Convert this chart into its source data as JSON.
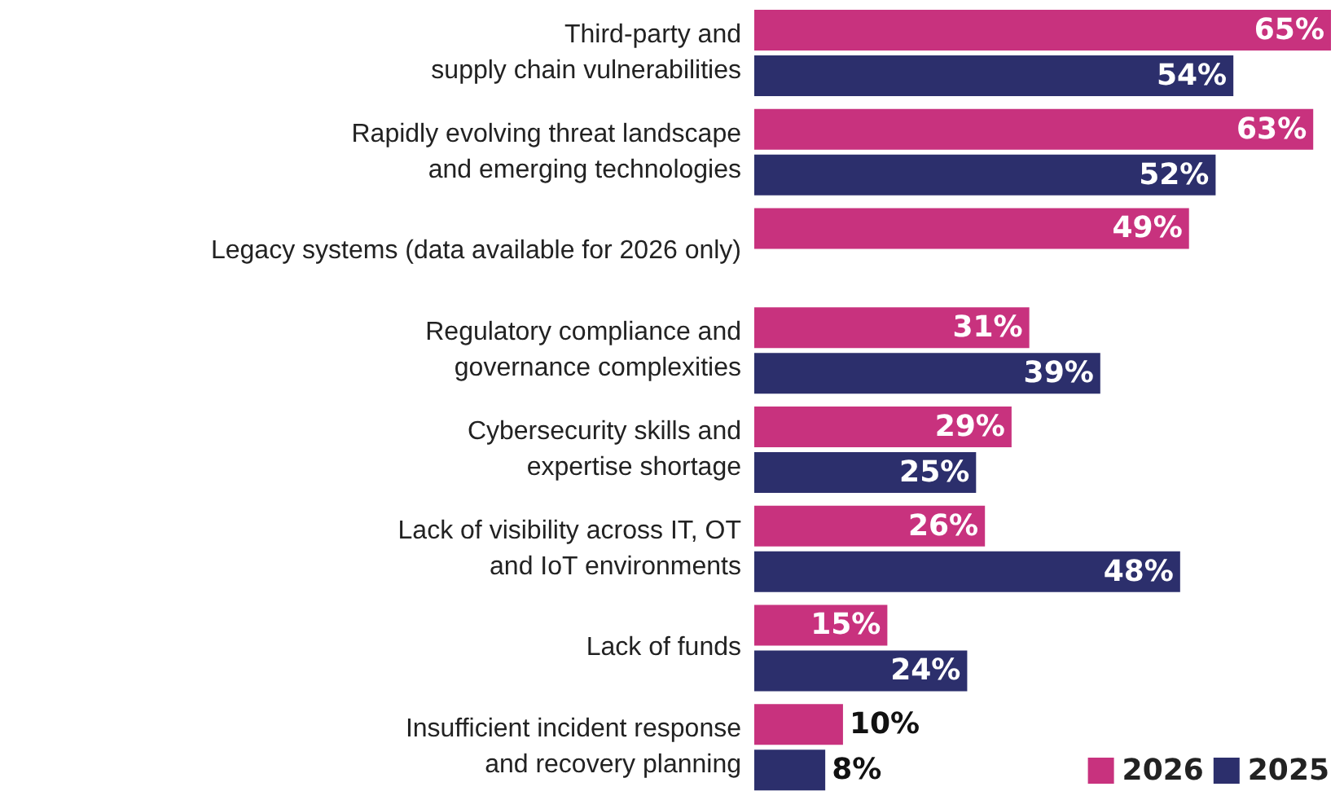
{
  "chart_data": {
    "type": "bar",
    "orientation": "horizontal",
    "categories": [
      "Third-party and\nsupply chain vulnerabilities",
      "Rapidly evolving threat landscape\nand emerging technologies",
      "Legacy systems (data available for 2026 only)",
      "Regulatory compliance and\ngovernance complexities",
      "Cybersecurity skills and\nexpertise shortage",
      "Lack of visibility across IT, OT\nand IoT environments",
      "Lack of funds",
      "Insufficient incident response\nand recovery planning"
    ],
    "series": [
      {
        "name": "2026",
        "color": "#c8327e",
        "values": [
          65,
          63,
          49,
          31,
          29,
          26,
          15,
          10
        ],
        "value_labels": [
          "65%",
          "63%",
          "49%",
          "31%",
          "29%",
          "26%",
          "15%",
          "10%"
        ]
      },
      {
        "name": "2025",
        "color": "#2c2f6c",
        "values": [
          54,
          52,
          null,
          39,
          25,
          48,
          24,
          8
        ],
        "value_labels": [
          "54%",
          "52%",
          null,
          "39%",
          "25%",
          "48%",
          "24%",
          "8%"
        ]
      }
    ],
    "legend": "bottom right"
  }
}
